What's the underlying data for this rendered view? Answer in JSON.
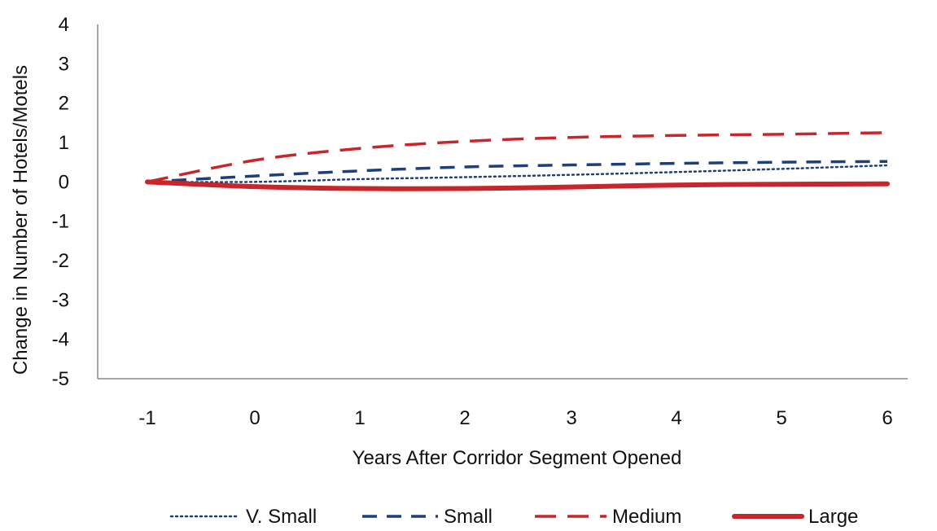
{
  "chart_data": {
    "type": "line",
    "title": "",
    "xlabel": "Years After Corridor Segment Opened",
    "ylabel": "Change in Number of Hotels/Motels",
    "x": [
      -1,
      0,
      1,
      2,
      3,
      4,
      5,
      6
    ],
    "x_tick_labels": [
      "-1",
      "0",
      "1",
      "2",
      "3",
      "4",
      "5",
      "6"
    ],
    "ylim": [
      -5,
      4
    ],
    "y_ticks": [
      4,
      3,
      2,
      1,
      0,
      -1,
      -2,
      -3,
      -4,
      -5
    ],
    "y_tick_labels": [
      "4",
      "3",
      "2",
      "1",
      "0",
      "-1",
      "-2",
      "-3",
      "-4",
      "-5"
    ],
    "grid": false,
    "legend_position": "bottom",
    "series": [
      {
        "name": "V. Small",
        "style": "dotted",
        "color": "#1f3f7a",
        "values": [
          0,
          0.0,
          0.07,
          0.12,
          0.18,
          0.25,
          0.33,
          0.42
        ]
      },
      {
        "name": "Small",
        "style": "dashed",
        "color": "#1f3f7a",
        "values": [
          0,
          0.15,
          0.28,
          0.38,
          0.43,
          0.47,
          0.5,
          0.52
        ]
      },
      {
        "name": "Medium",
        "style": "long-dashed",
        "color": "#c9252b",
        "values": [
          0,
          0.55,
          0.85,
          1.03,
          1.13,
          1.18,
          1.21,
          1.25
        ]
      },
      {
        "name": "Large",
        "style": "solid-thick",
        "color": "#c9252b",
        "values": [
          0,
          -0.12,
          -0.17,
          -0.17,
          -0.13,
          -0.08,
          -0.06,
          -0.05
        ]
      }
    ]
  }
}
